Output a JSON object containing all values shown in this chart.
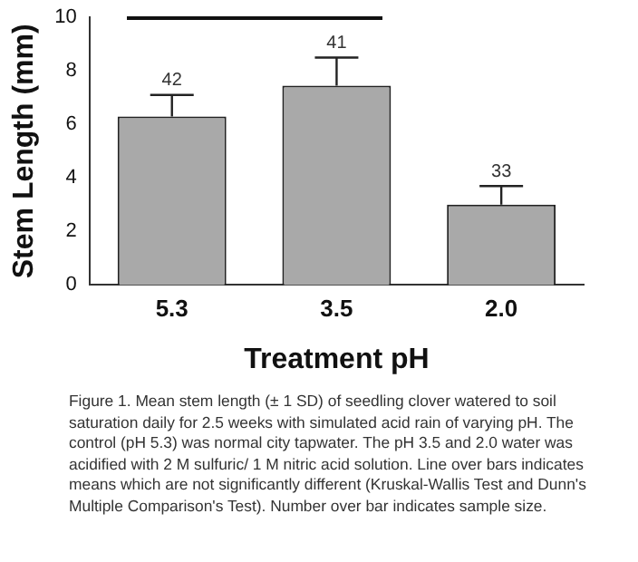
{
  "chart_data": {
    "type": "bar",
    "xlabel": "Treatment pH",
    "ylabel": "Stem Length (mm)",
    "categories": [
      "5.3",
      "3.5",
      "2.0"
    ],
    "values": [
      6.3,
      7.45,
      3.0
    ],
    "errors": [
      0.8,
      1.05,
      0.7
    ],
    "color": "#a9a9a9",
    "ylim": [
      0,
      10
    ],
    "yticks": [
      0,
      2,
      4,
      6,
      8,
      10
    ],
    "grid": false,
    "legend": false,
    "annotations": [
      {
        "text": "42",
        "x": "5.3",
        "y": 7.1
      },
      {
        "text": "41",
        "x": "3.5",
        "y": 8.5
      },
      {
        "text": "33",
        "x": "2.0",
        "y": 3.7
      },
      "Figure 1.  Mean stem length (± 1 SD) of seedling clover watered to soil saturation daily for 2.5 weeks with simulated acid rain of varying pH.  The control (pH 5.3) was normal city tapwater.   The pH 3.5 and 2.0 water was acidified with 2 M sulfuric/ 1 M nitric acid solution.  Line over bars indicates means which are not significantly different (Kruskal-Wallis Test and Dunn's Multiple Comparison's Test).  Number over bar indicates sample size."
    ]
  }
}
